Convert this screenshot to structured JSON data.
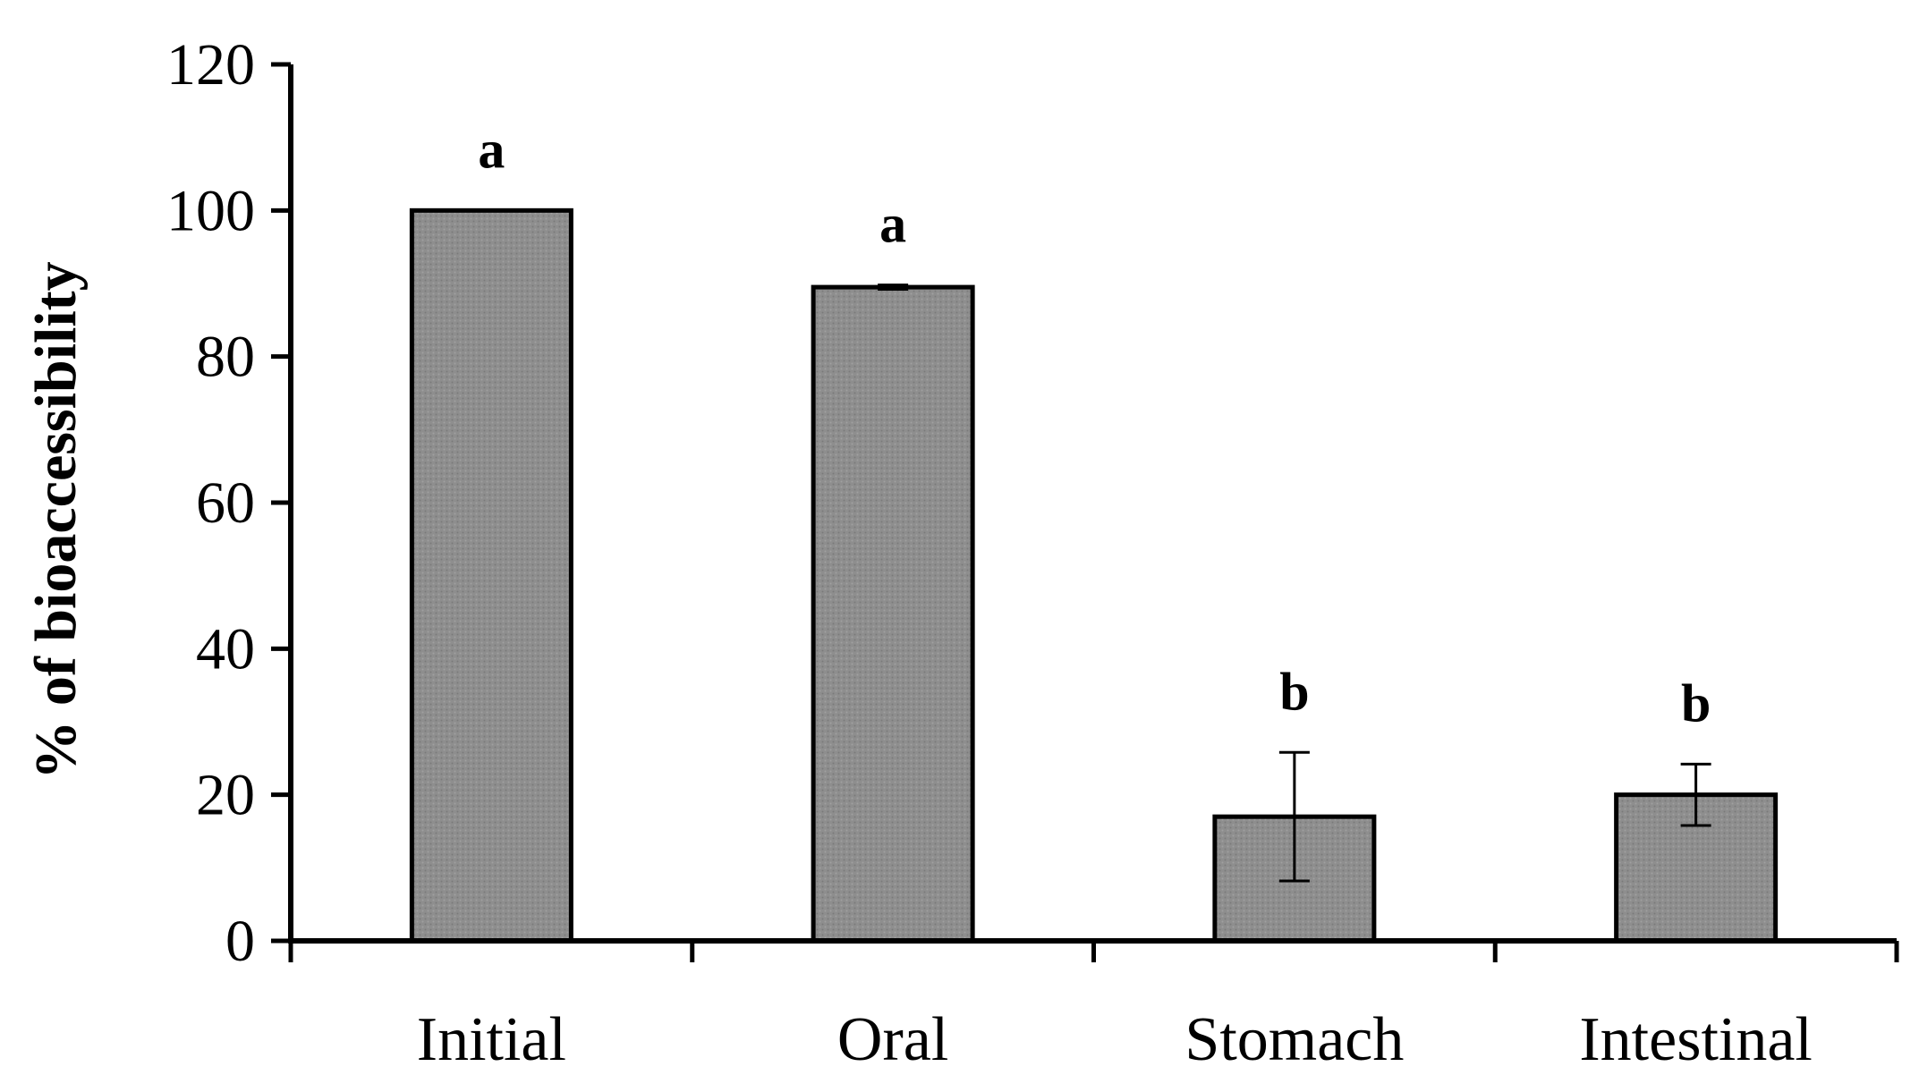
{
  "chart_data": {
    "type": "bar",
    "title": "",
    "xlabel": "",
    "ylabel": "% of bioaccessibility",
    "ylim": [
      0,
      120
    ],
    "yticks": [
      "0",
      "20",
      "40",
      "60",
      "80",
      "100",
      "120"
    ],
    "categories": [
      "Initial",
      "Oral",
      "Stomach",
      "Intestinal"
    ],
    "series": [
      {
        "name": "bioaccessibility",
        "values": [
          100,
          89.5,
          17,
          20
        ],
        "errors": [
          0,
          0.3,
          8.8,
          4.2
        ],
        "significance": [
          "a",
          "a",
          "b",
          "b"
        ]
      }
    ],
    "grid": false,
    "legend": "none",
    "colors": {
      "bar_fill": "#8c8c8c",
      "bar_stroke": "#000000",
      "axis": "#000000"
    }
  }
}
